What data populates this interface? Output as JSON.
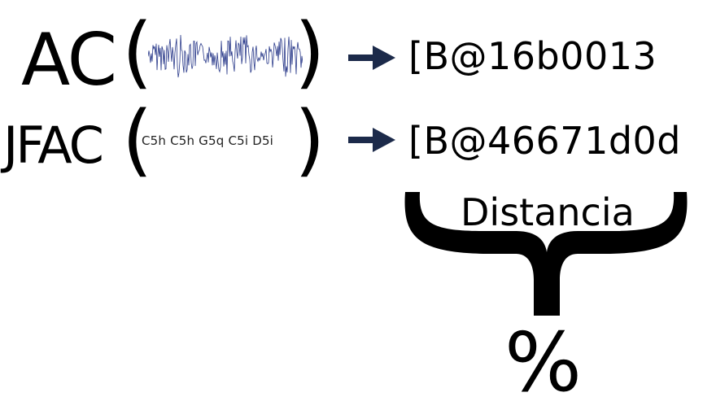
{
  "rows": [
    {
      "function_label": "AC",
      "input_kind": "waveform-image",
      "output_value": "[B@16b0013"
    },
    {
      "function_label": "JFAC",
      "input_kind": "note-sequence",
      "input_text": "C5h C5h G5q C5i D5i",
      "output_value": "[B@46671d0d"
    }
  ],
  "open_paren": "(",
  "close_paren": ")",
  "distance_label": "Distancia",
  "result_symbol": "%",
  "colors": {
    "text": "#000000",
    "arrow": "#1c2a4a",
    "waveform": "#2a3a8a"
  },
  "icons": {
    "arrow": "right-arrow-icon",
    "brace": "curly-brace-down-icon"
  }
}
